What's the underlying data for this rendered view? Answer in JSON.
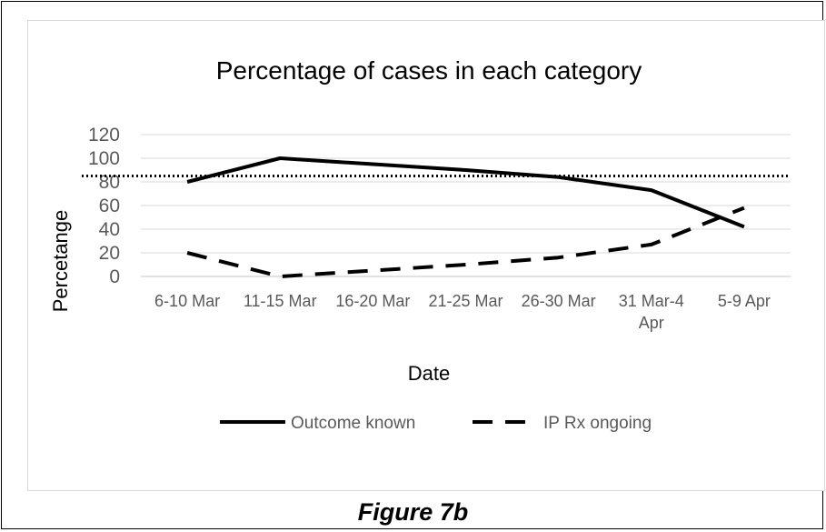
{
  "figure_caption": "Figure 7b",
  "chart_data": {
    "type": "line",
    "title": "Percentage of cases in each category",
    "xlabel": "Date",
    "ylabel": "Percetange",
    "categories": [
      "6-10 Mar",
      "11-15 Mar",
      "16-20 Mar",
      "21-25 Mar",
      "26-30 Mar",
      "31 Mar-4 Apr",
      "5-9 Apr"
    ],
    "category_lines": [
      [
        "6-10 Mar"
      ],
      [
        "11-15 Mar"
      ],
      [
        "16-20 Mar"
      ],
      [
        "21-25 Mar"
      ],
      [
        "26-30 Mar"
      ],
      [
        "31 Mar-4",
        "Apr"
      ],
      [
        "5-9 Apr"
      ]
    ],
    "ylim": [
      0,
      120
    ],
    "yticks": [
      0,
      20,
      40,
      60,
      80,
      100,
      120
    ],
    "grid": true,
    "legend_position": "bottom",
    "reference_line": {
      "value": 85,
      "style": "dotted",
      "color": "#000000"
    },
    "series": [
      {
        "name": "Outcome known",
        "style": "solid",
        "color": "#000000",
        "values": [
          80,
          100,
          95,
          90,
          84,
          73,
          42
        ]
      },
      {
        "name": "IP Rx ongoing",
        "style": "dashed",
        "color": "#000000",
        "values": [
          20,
          0,
          5,
          10,
          16,
          27,
          58
        ]
      }
    ]
  }
}
